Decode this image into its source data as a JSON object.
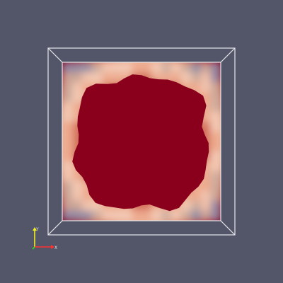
{
  "viewport": {
    "background_color": "#525668",
    "outline_color": "#e8e8ec"
  },
  "volume_slice": {
    "colormap": [
      "#8a97b5",
      "#c9b1a5",
      "#f2cdb8",
      "#eda98c",
      "#d46650",
      "#b0202c",
      "#8a001c"
    ],
    "core_color": "#8a001c"
  },
  "orientation_axes": {
    "x_color": "#ff3030",
    "y_color": "#f0f020",
    "z_color": "#20e020"
  }
}
